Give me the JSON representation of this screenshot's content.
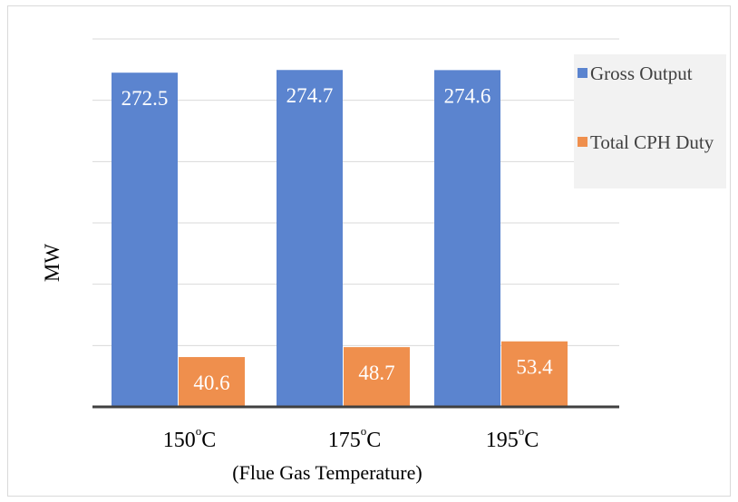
{
  "chart_data": {
    "type": "bar",
    "title": "",
    "xlabel": "(Flue Gas Temperature)",
    "ylabel": "MW",
    "categories": [
      "150",
      "175",
      "195"
    ],
    "category_unit": "°C",
    "ylim": [
      0,
      300
    ],
    "yticks": [
      0,
      50,
      100,
      150,
      200,
      250,
      300
    ],
    "grid": true,
    "legend_position": "right",
    "series": [
      {
        "name": "Gross Output",
        "color": "#5b84cf",
        "values": [
          272.5,
          274.7,
          274.6
        ],
        "labels": [
          "272.5",
          "274.7",
          "274.6"
        ]
      },
      {
        "name": "Total CPH Duty",
        "color": "#ef8f4d",
        "values": [
          40.6,
          48.7,
          53.4
        ],
        "labels": [
          "40.6",
          "48.7",
          "53.4"
        ]
      }
    ]
  }
}
